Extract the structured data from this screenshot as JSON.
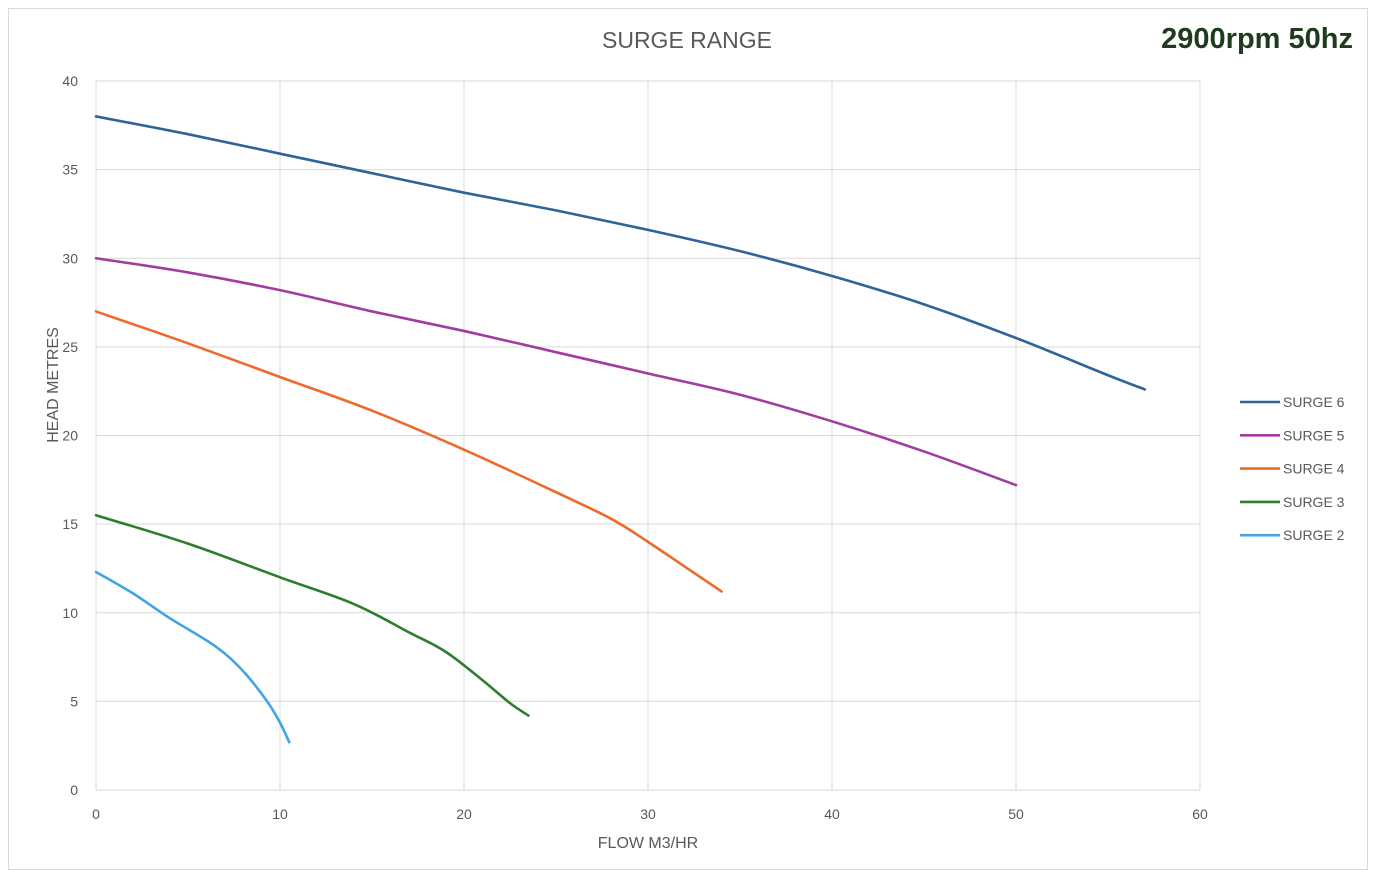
{
  "header": {
    "badge": "2900rpm 50hz"
  },
  "chart_data": {
    "type": "line",
    "title": "SURGE RANGE",
    "xlabel": "FLOW M3/HR",
    "ylabel": "HEAD METRES",
    "xlim": [
      0,
      60
    ],
    "ylim": [
      0,
      40
    ],
    "xticks": [
      0,
      10,
      20,
      30,
      40,
      50,
      60
    ],
    "yticks": [
      0,
      5,
      10,
      15,
      20,
      25,
      30,
      35,
      40
    ],
    "grid": true,
    "legend_position": "right",
    "series": [
      {
        "name": "SURGE 6",
        "color": "#2e6496",
        "points": [
          [
            0,
            38
          ],
          [
            5,
            37
          ],
          [
            10,
            35.9
          ],
          [
            15,
            34.8
          ],
          [
            20,
            33.7
          ],
          [
            25,
            32.7
          ],
          [
            30,
            31.6
          ],
          [
            35,
            30.4
          ],
          [
            40,
            29
          ],
          [
            45,
            27.4
          ],
          [
            50,
            25.5
          ],
          [
            55,
            23.4
          ],
          [
            57,
            22.6
          ]
        ]
      },
      {
        "name": "SURGE 5",
        "color": "#a23c9e",
        "points": [
          [
            0,
            30
          ],
          [
            5,
            29.2
          ],
          [
            10,
            28.2
          ],
          [
            15,
            27
          ],
          [
            20,
            25.9
          ],
          [
            25,
            24.7
          ],
          [
            30,
            23.5
          ],
          [
            35,
            22.3
          ],
          [
            40,
            20.8
          ],
          [
            45,
            19.1
          ],
          [
            50,
            17.2
          ]
        ]
      },
      {
        "name": "SURGE 4",
        "color": "#ee6a2c",
        "points": [
          [
            0,
            27
          ],
          [
            5,
            25.2
          ],
          [
            10,
            23.3
          ],
          [
            15,
            21.4
          ],
          [
            20,
            19.2
          ],
          [
            25,
            16.8
          ],
          [
            28,
            15.3
          ],
          [
            30,
            14
          ],
          [
            32,
            12.6
          ],
          [
            34,
            11.2
          ]
        ]
      },
      {
        "name": "SURGE 3",
        "color": "#2e7d2c",
        "points": [
          [
            0,
            15.5
          ],
          [
            5,
            13.9
          ],
          [
            10,
            12
          ],
          [
            14,
            10.5
          ],
          [
            17,
            8.9
          ],
          [
            19,
            7.8
          ],
          [
            21,
            6.2
          ],
          [
            22.5,
            4.9
          ],
          [
            23.5,
            4.2
          ]
        ]
      },
      {
        "name": "SURGE 2",
        "color": "#41a5e1",
        "points": [
          [
            0,
            12.3
          ],
          [
            2,
            11.1
          ],
          [
            4,
            9.7
          ],
          [
            6.5,
            8.1
          ],
          [
            8,
            6.7
          ],
          [
            9.3,
            5
          ],
          [
            10,
            3.8
          ],
          [
            10.5,
            2.7
          ]
        ]
      }
    ]
  }
}
